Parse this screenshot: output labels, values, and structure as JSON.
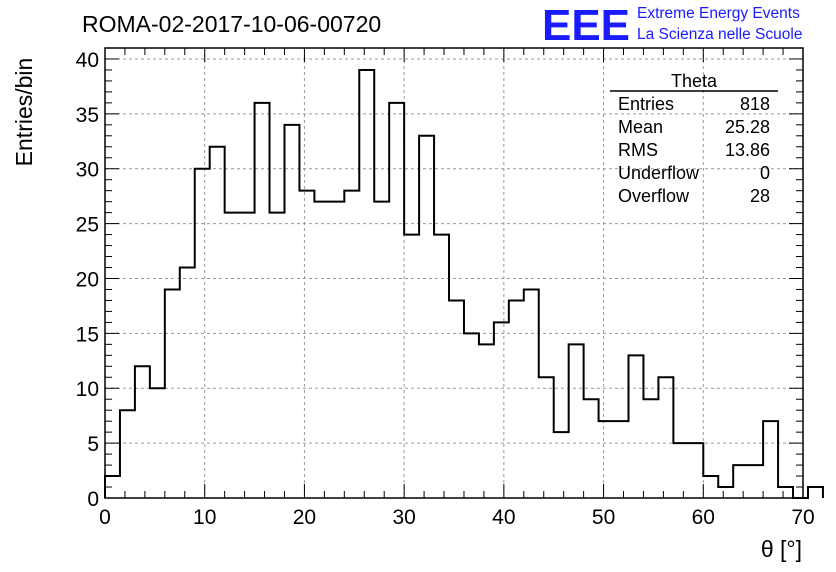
{
  "chart_data": {
    "type": "histogram",
    "title": "ROMA-02-2017-10-06-00720",
    "xlabel": "θ [°]",
    "ylabel": "Entries/bin",
    "xlim": [
      0,
      70
    ],
    "ylim": [
      0,
      41
    ],
    "xticks": [
      0,
      10,
      20,
      30,
      40,
      50,
      60,
      70
    ],
    "yticks": [
      0,
      5,
      10,
      15,
      20,
      25,
      30,
      35,
      40
    ],
    "grid": true,
    "bin_width": 1.5,
    "values": [
      2,
      8,
      12,
      10,
      19,
      21,
      30,
      32,
      26,
      26,
      36,
      26,
      34,
      28,
      27,
      27,
      28,
      39,
      27,
      36,
      24,
      33,
      24,
      18,
      15,
      14,
      16,
      18,
      19,
      11,
      6,
      14,
      9,
      7,
      7,
      13,
      9,
      11,
      5,
      5,
      2,
      1,
      3,
      3,
      7,
      1,
      0,
      1
    ],
    "stats_box": {
      "title": "Theta",
      "rows": [
        {
          "label": "Entries",
          "value": "818"
        },
        {
          "label": "Mean",
          "value": "25.28"
        },
        {
          "label": "RMS",
          "value": "13.86"
        },
        {
          "label": "Underflow",
          "value": "0"
        },
        {
          "label": "Overflow",
          "value": "28"
        }
      ],
      "placement": "top-right"
    }
  },
  "logo": {
    "mark": "EEE",
    "line1": "Extreme Energy Events",
    "line2": "La Scienza nelle Scuole",
    "color": "#1a1aff"
  }
}
